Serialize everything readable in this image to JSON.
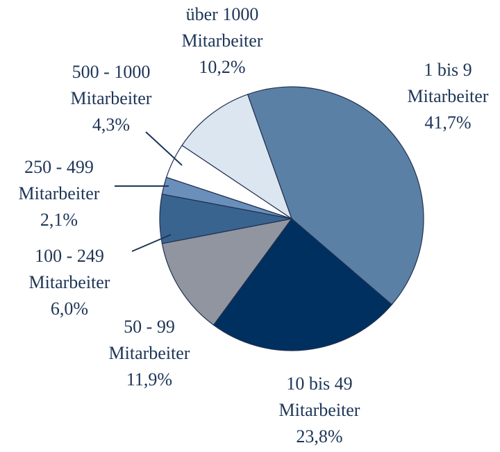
{
  "chart_data": {
    "type": "pie",
    "categories": [
      "1 bis 9 Mitarbeiter",
      "10 bis 49 Mitarbeiter",
      "50 - 99 Mitarbeiter",
      "100 - 249 Mitarbeiter",
      "250 - 499 Mitarbeiter",
      "500 - 1000 Mitarbeiter",
      "über 1000 Mitarbeiter"
    ],
    "values": [
      41.7,
      23.8,
      11.9,
      6.0,
      2.1,
      4.3,
      10.2
    ],
    "value_labels": [
      "41,7%",
      "23,8%",
      "11,9%",
      "6,0%",
      "2,1%",
      "4,3%",
      "10,2%"
    ],
    "colors": [
      "#5b80a5",
      "#003060",
      "#9095a0",
      "#3a6490",
      "#6a8fba",
      "#ffffff",
      "#dce6f0"
    ]
  }
}
